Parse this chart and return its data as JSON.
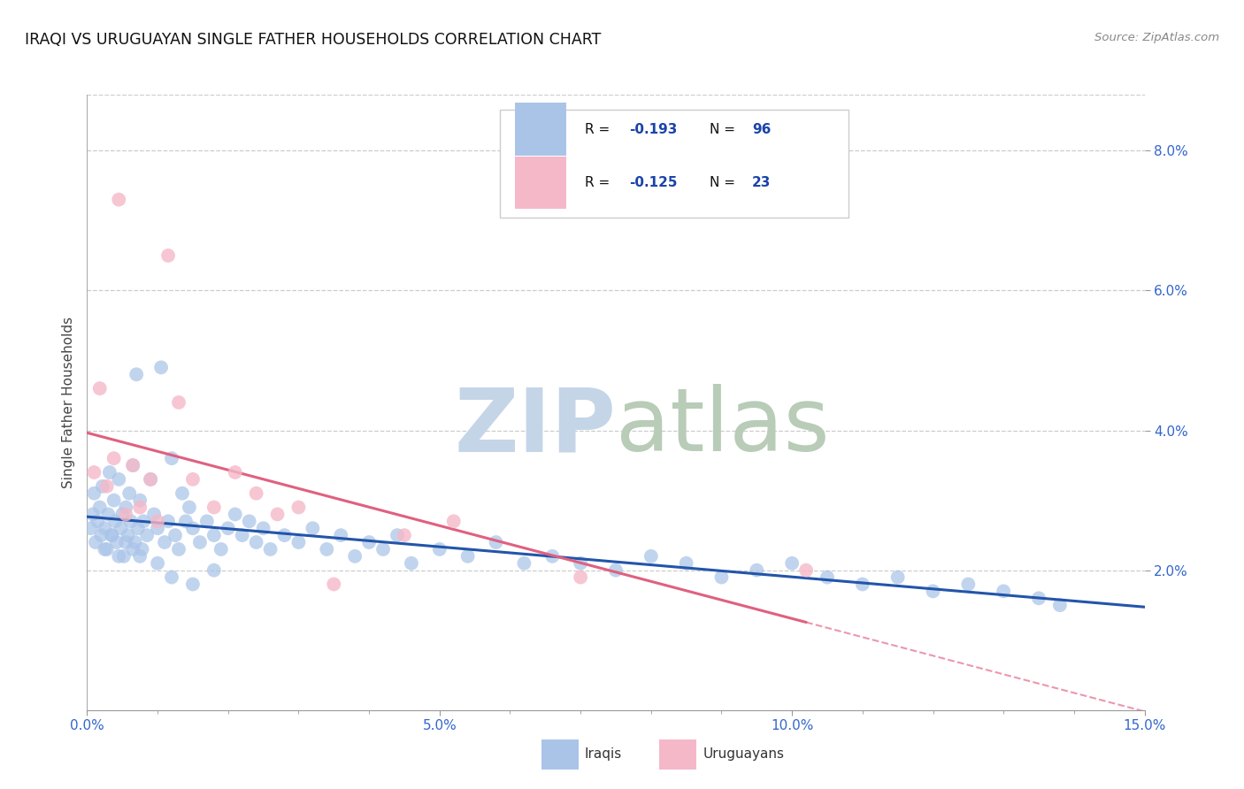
{
  "title": "IRAQI VS URUGUAYAN SINGLE FATHER HOUSEHOLDS CORRELATION CHART",
  "source": "Source: ZipAtlas.com",
  "ylabel": "Single Father Households",
  "xlim": [
    0.0,
    15.0
  ],
  "ylim": [
    0.0,
    8.8
  ],
  "iraqis_color": "#aac4e8",
  "uruguayans_color": "#f5b8c8",
  "iraqis_line_color": "#2255aa",
  "uruguayans_line_color": "#e06080",
  "iraqis_R": "-0.193",
  "iraqis_N": "96",
  "uruguayans_R": "-0.125",
  "uruguayans_N": "23",
  "legend_text_color": "#1a44aa",
  "tick_color": "#3366cc",
  "ylabel_color": "#444444",
  "grid_color": "#cccccc",
  "watermark_zip_color": "#c5d5e8",
  "watermark_atlas_color": "#b8ccb8",
  "iraqis_x": [
    0.05,
    0.08,
    0.1,
    0.12,
    0.15,
    0.18,
    0.2,
    0.22,
    0.25,
    0.28,
    0.3,
    0.32,
    0.35,
    0.38,
    0.4,
    0.42,
    0.45,
    0.48,
    0.5,
    0.52,
    0.55,
    0.58,
    0.6,
    0.62,
    0.65,
    0.68,
    0.7,
    0.72,
    0.75,
    0.78,
    0.8,
    0.85,
    0.9,
    0.95,
    1.0,
    1.05,
    1.1,
    1.15,
    1.2,
    1.25,
    1.3,
    1.35,
    1.4,
    1.45,
    1.5,
    1.6,
    1.7,
    1.8,
    1.9,
    2.0,
    2.1,
    2.2,
    2.3,
    2.4,
    2.5,
    2.6,
    2.8,
    3.0,
    3.2,
    3.4,
    3.6,
    3.8,
    4.0,
    4.2,
    4.4,
    4.6,
    5.0,
    5.4,
    5.8,
    6.2,
    6.6,
    7.0,
    7.5,
    8.0,
    8.5,
    9.0,
    9.5,
    10.0,
    10.5,
    11.0,
    11.5,
    12.0,
    12.5,
    13.0,
    13.5,
    13.8,
    0.25,
    0.35,
    0.45,
    0.55,
    0.65,
    0.75,
    1.0,
    1.2,
    1.5,
    1.8
  ],
  "iraqis_y": [
    2.6,
    2.8,
    3.1,
    2.4,
    2.7,
    2.9,
    2.5,
    3.2,
    2.6,
    2.3,
    2.8,
    3.4,
    2.5,
    3.0,
    2.7,
    2.4,
    3.3,
    2.6,
    2.8,
    2.2,
    2.9,
    2.5,
    3.1,
    2.7,
    3.5,
    2.4,
    4.8,
    2.6,
    3.0,
    2.3,
    2.7,
    2.5,
    3.3,
    2.8,
    2.6,
    4.9,
    2.4,
    2.7,
    3.6,
    2.5,
    2.3,
    3.1,
    2.7,
    2.9,
    2.6,
    2.4,
    2.7,
    2.5,
    2.3,
    2.6,
    2.8,
    2.5,
    2.7,
    2.4,
    2.6,
    2.3,
    2.5,
    2.4,
    2.6,
    2.3,
    2.5,
    2.2,
    2.4,
    2.3,
    2.5,
    2.1,
    2.3,
    2.2,
    2.4,
    2.1,
    2.2,
    2.1,
    2.0,
    2.2,
    2.1,
    1.9,
    2.0,
    2.1,
    1.9,
    1.8,
    1.9,
    1.7,
    1.8,
    1.7,
    1.6,
    1.5,
    2.3,
    2.5,
    2.2,
    2.4,
    2.3,
    2.2,
    2.1,
    1.9,
    1.8,
    2.0
  ],
  "uruguayans_x": [
    0.1,
    0.18,
    0.28,
    0.38,
    0.45,
    0.55,
    0.65,
    0.75,
    0.9,
    1.0,
    1.15,
    1.3,
    1.5,
    1.8,
    2.1,
    2.4,
    2.7,
    3.0,
    3.5,
    4.5,
    5.2,
    7.0,
    10.2
  ],
  "uruguayans_y": [
    3.4,
    4.6,
    3.2,
    3.6,
    7.3,
    2.8,
    3.5,
    2.9,
    3.3,
    2.7,
    6.5,
    4.4,
    3.3,
    2.9,
    3.4,
    3.1,
    2.8,
    2.9,
    1.8,
    2.5,
    2.7,
    1.9,
    2.0
  ]
}
